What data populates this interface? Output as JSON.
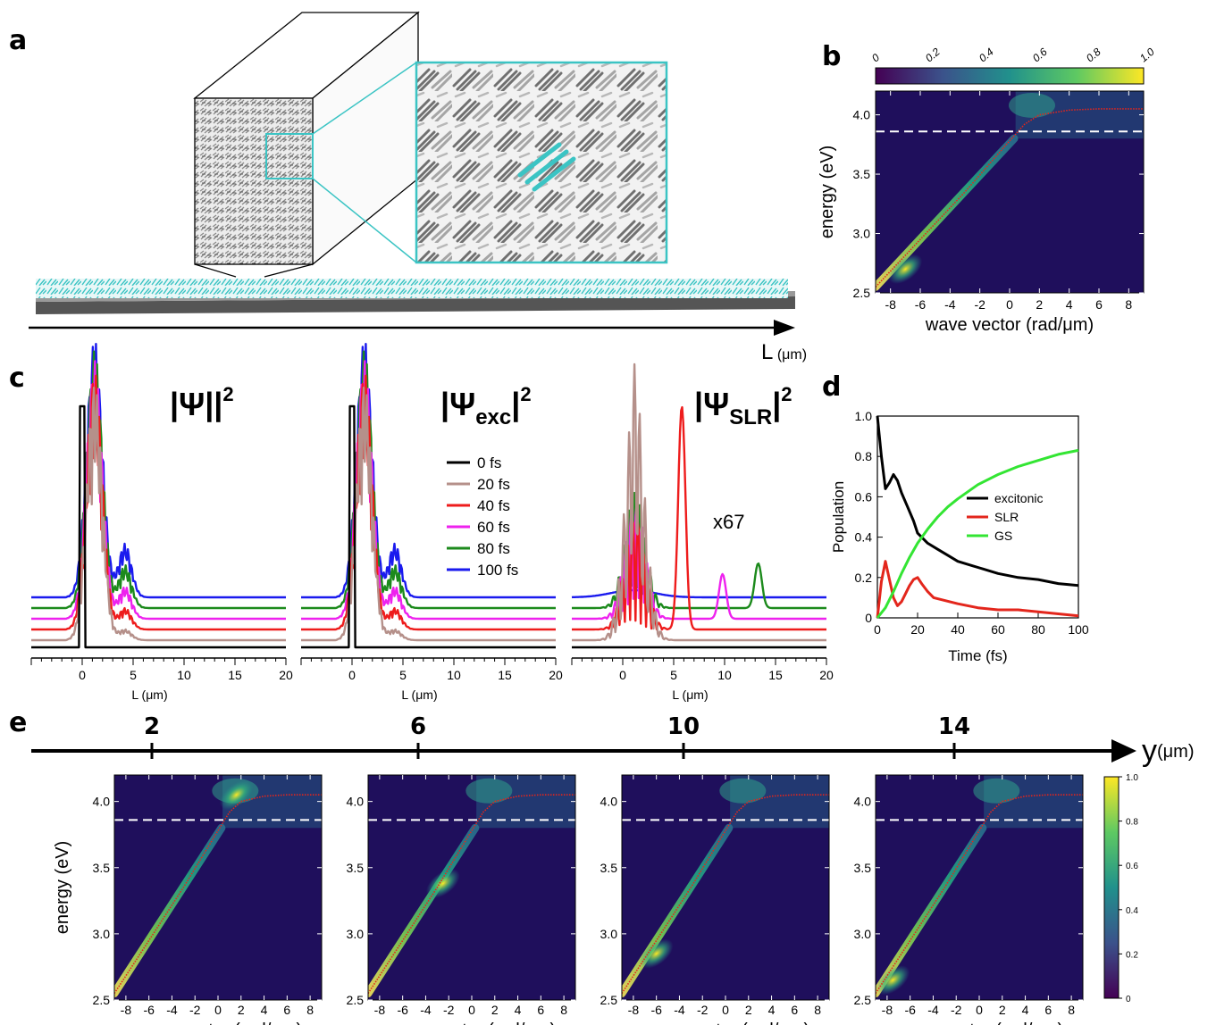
{
  "panels": {
    "a": "a",
    "b": "b",
    "c": "c",
    "d": "d",
    "e": "e"
  },
  "panel_a": {
    "axis_label": "L",
    "axis_unit": "(μm)"
  },
  "panel_b": {
    "xlabel": "wave vector (rad/μm)",
    "ylabel": "energy (eV)",
    "xticks": [
      "-8",
      "-6",
      "-4",
      "-2",
      "0",
      "2",
      "4",
      "6",
      "8"
    ],
    "yticks": [
      "2.5",
      "3.0",
      "3.5",
      "4.0"
    ],
    "colorbar_ticks": [
      "0",
      "0.2",
      "0.4",
      "0.6",
      "0.8",
      "1.0"
    ]
  },
  "panel_c": {
    "titles": [
      "|Ψ|",
      "|Ψ",
      "|Ψ"
    ],
    "subs": [
      "",
      "exc",
      "SLR"
    ],
    "sup": "2",
    "xlabel": "L (μm)",
    "xticks": [
      "0",
      "5",
      "10",
      "15",
      "20"
    ],
    "multiplier": "x67",
    "legend": [
      "0 fs",
      "20 fs",
      "40 fs",
      "60 fs",
      "80 fs",
      "100 fs"
    ]
  },
  "panel_d": {
    "xlabel": "Time (fs)",
    "ylabel": "Population",
    "xticks": [
      "0",
      "20",
      "40",
      "60",
      "80",
      "100"
    ],
    "yticks": [
      "0",
      "0.2",
      "0.4",
      "0.6",
      "0.8",
      "1.0"
    ],
    "legend": [
      "excitonic",
      "SLR",
      "GS"
    ]
  },
  "panel_e": {
    "axis_label": "y",
    "axis_unit": "(μm)",
    "positions": [
      "2",
      "6",
      "10",
      "14"
    ],
    "ylabel": "energy (eV)",
    "xlabel": "wave vector (rad/μm)",
    "xticks": [
      "-8",
      "-6",
      "-4",
      "-2",
      "0",
      "2",
      "4",
      "6",
      "8"
    ],
    "yticks": [
      "2.5",
      "3.0",
      "3.5",
      "4.0"
    ],
    "colorbar_ticks": [
      "0",
      "0.2",
      "0.4",
      "0.6",
      "0.8",
      "1.0"
    ]
  },
  "colors": {
    "fs0": "#000000",
    "fs20": "#b5908a",
    "fs40": "#ee1c1c",
    "fs60": "#ee22ee",
    "fs80": "#1c8a1c",
    "fs100": "#1a1aee",
    "excitonic": "#000000",
    "slr": "#e3261c",
    "gs": "#33e533",
    "teal": "#3bc4c4",
    "heat_bg": "#1f0f5c"
  },
  "chart_data": [
    {
      "type": "line",
      "id": "d",
      "xlabel": "Time (fs)",
      "ylabel": "Population",
      "xlim": [
        0,
        100
      ],
      "ylim": [
        0,
        1.0
      ],
      "legend": "upper-right",
      "series": [
        {
          "name": "excitonic",
          "x": [
            0,
            2,
            4,
            6,
            8,
            10,
            12,
            15,
            18,
            20,
            25,
            30,
            35,
            40,
            50,
            60,
            70,
            80,
            90,
            100
          ],
          "y": [
            1.0,
            0.8,
            0.64,
            0.67,
            0.71,
            0.68,
            0.62,
            0.55,
            0.48,
            0.42,
            0.37,
            0.34,
            0.31,
            0.28,
            0.25,
            0.22,
            0.2,
            0.19,
            0.17,
            0.16
          ]
        },
        {
          "name": "SLR",
          "x": [
            0,
            2,
            4,
            6,
            8,
            10,
            12,
            14,
            16,
            18,
            20,
            22,
            25,
            28,
            32,
            36,
            40,
            50,
            60,
            70,
            80,
            90,
            100
          ],
          "y": [
            0,
            0.18,
            0.28,
            0.19,
            0.1,
            0.06,
            0.08,
            0.12,
            0.16,
            0.19,
            0.2,
            0.17,
            0.13,
            0.1,
            0.09,
            0.08,
            0.07,
            0.05,
            0.04,
            0.04,
            0.03,
            0.02,
            0.01
          ]
        },
        {
          "name": "GS",
          "x": [
            0,
            4,
            8,
            12,
            16,
            20,
            25,
            30,
            35,
            40,
            50,
            60,
            70,
            80,
            90,
            100
          ],
          "y": [
            0,
            0.05,
            0.13,
            0.22,
            0.3,
            0.37,
            0.44,
            0.5,
            0.55,
            0.59,
            0.66,
            0.71,
            0.75,
            0.78,
            0.81,
            0.83
          ]
        }
      ]
    },
    {
      "type": "heatmap",
      "id": "b",
      "xlabel": "wave vector (rad/μm)",
      "ylabel": "energy (eV)",
      "xlim": [
        -9,
        9
      ],
      "ylim": [
        2.5,
        4.2
      ],
      "reference_line_energy": 3.86,
      "branch_x": [
        -9,
        -6,
        -3,
        0,
        1,
        2,
        4,
        6,
        9
      ],
      "branch_y": [
        2.55,
        2.95,
        3.35,
        3.78,
        3.92,
        4.0,
        4.04,
        4.05,
        4.05
      ]
    },
    {
      "type": "heatmap",
      "id": "e",
      "xlabel": "wave vector (rad/μm)",
      "ylabel": "energy (eV)",
      "xlim": [
        -9,
        9
      ],
      "ylim": [
        2.5,
        4.2
      ],
      "y_positions_um": [
        2,
        6,
        10,
        14
      ]
    }
  ]
}
